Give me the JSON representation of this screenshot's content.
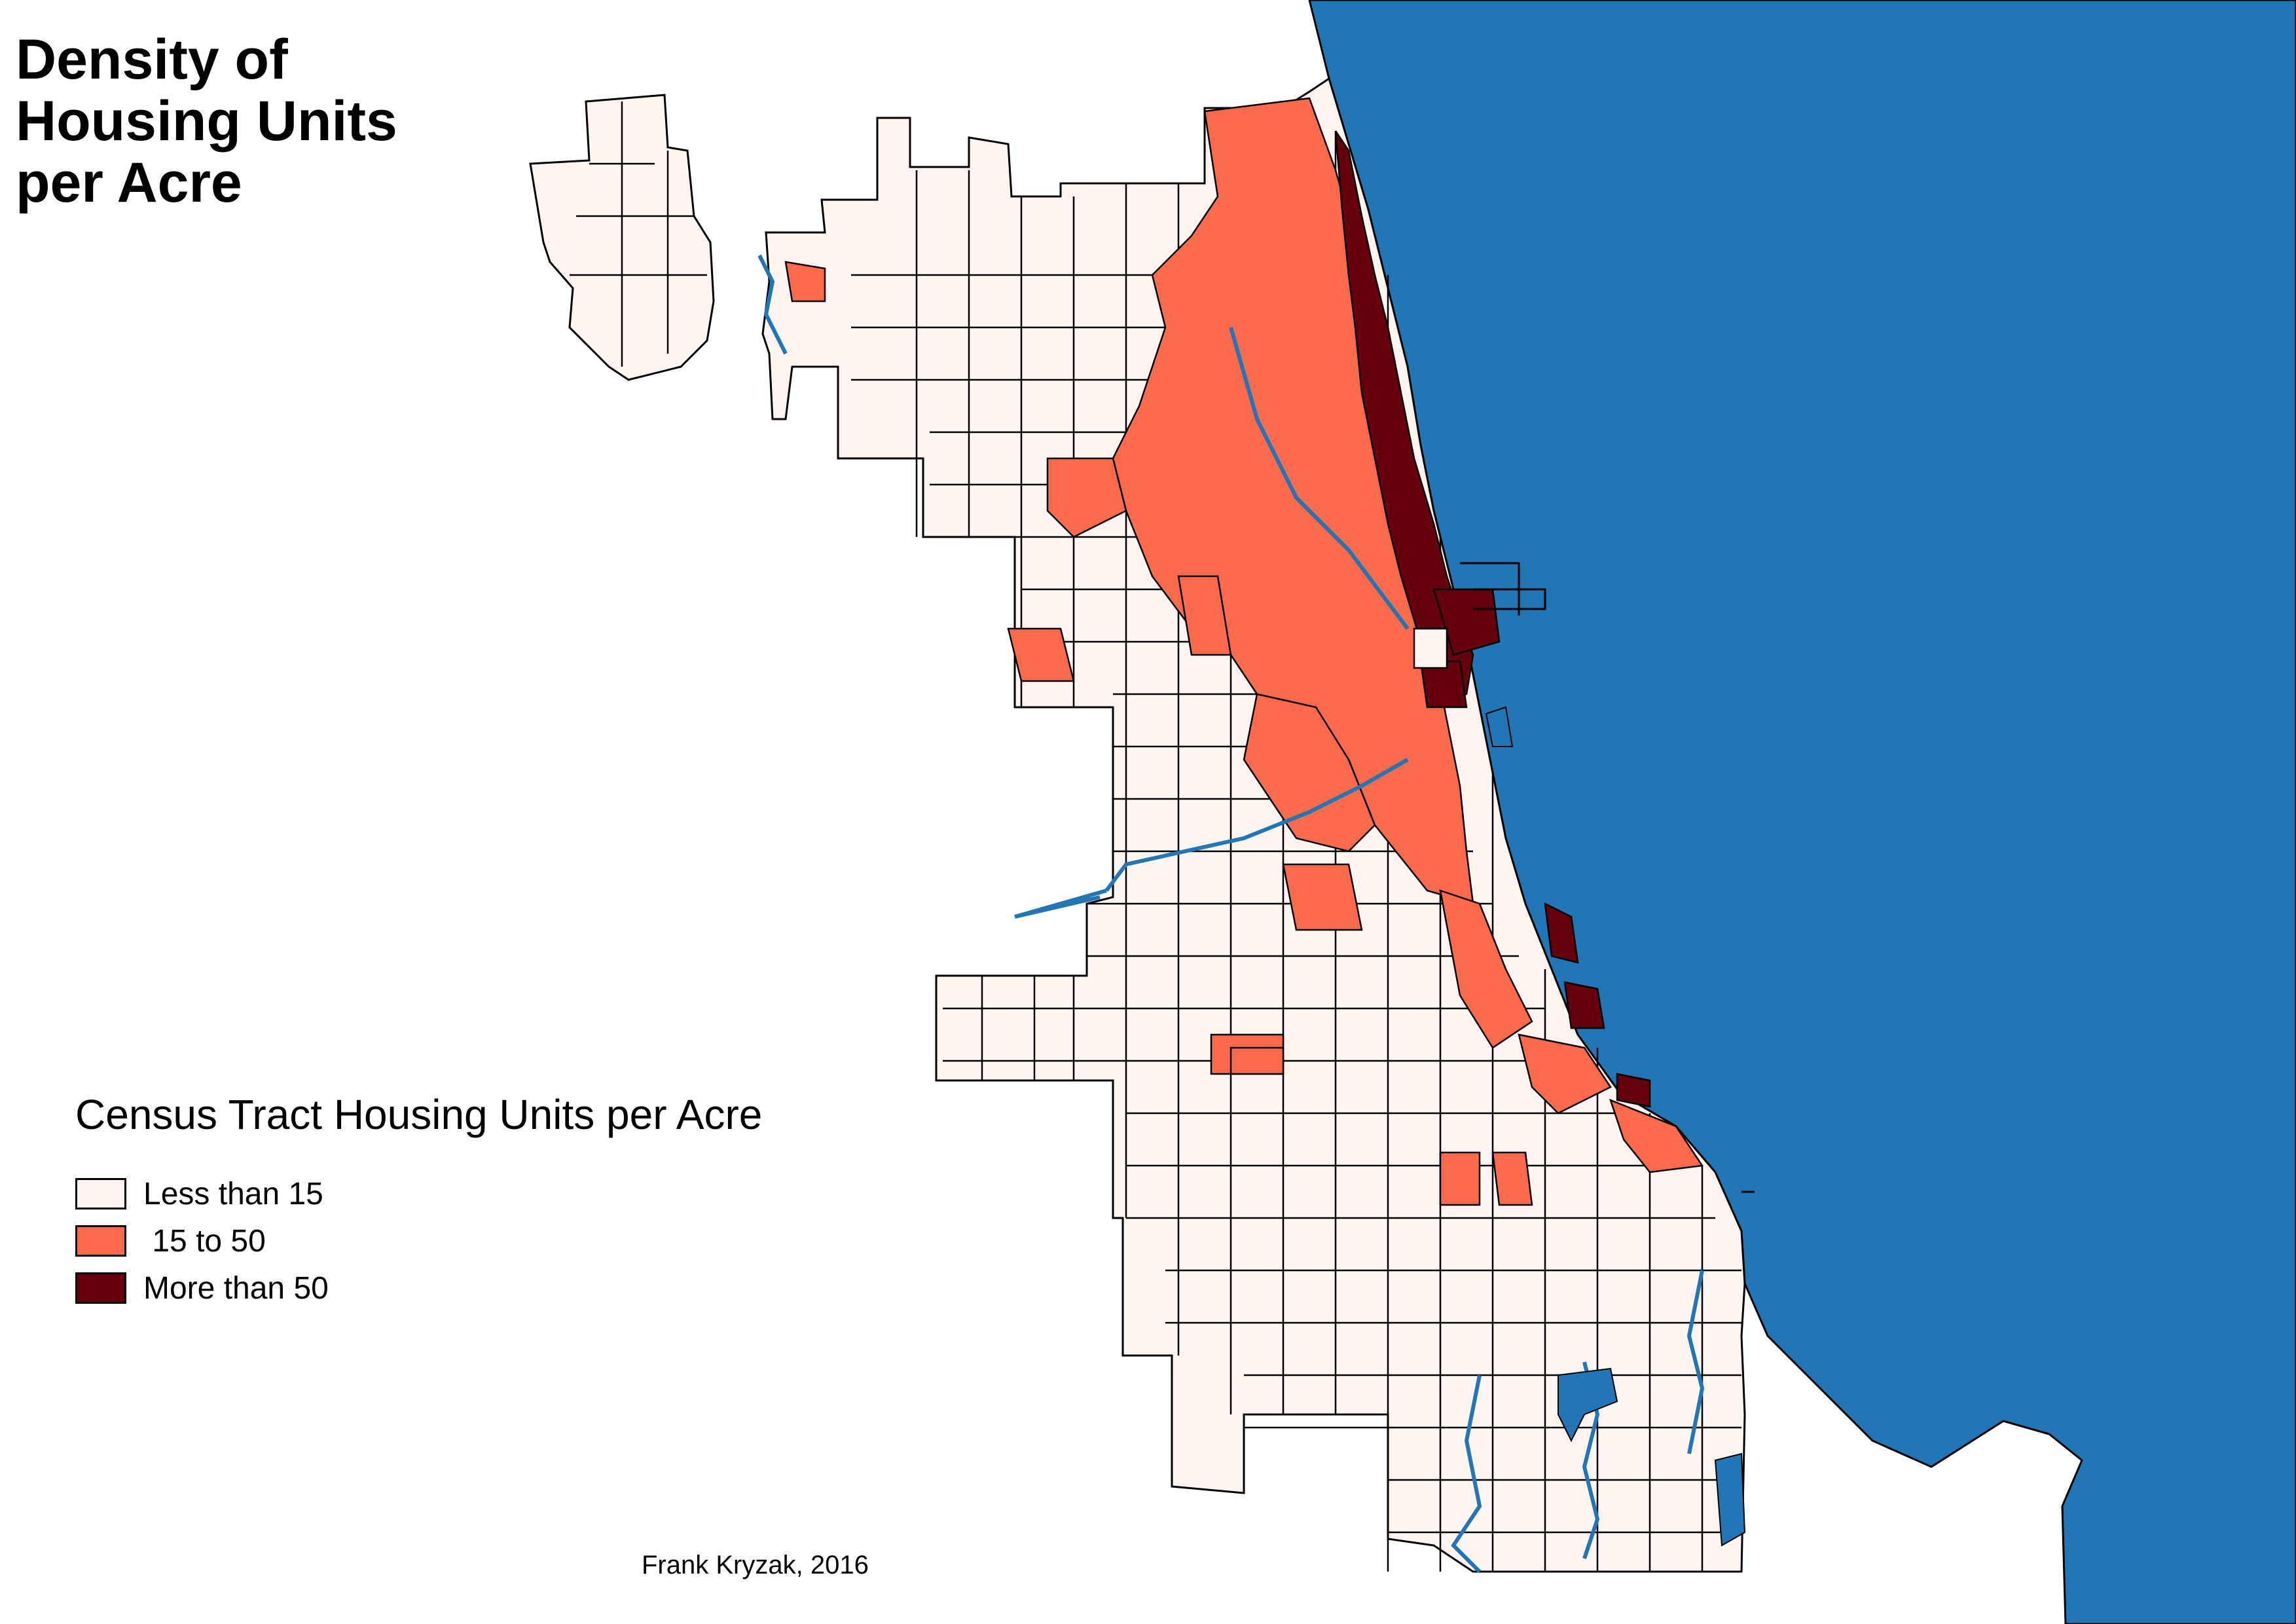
{
  "title": "Density of\nHousing Units\nper Acre",
  "legend": {
    "title": "Census Tract Housing Units per Acre",
    "items": [
      {
        "label": "Less than 15",
        "color": "#fff5f0"
      },
      {
        "label": " 15 to 50",
        "color": "#fb6a4a"
      },
      {
        "label": "More than 50",
        "color": "#67000d"
      }
    ]
  },
  "credit": "Frank Kryzak, 2016",
  "colors": {
    "water": "#2176b5",
    "boundary": "#000000",
    "low": "#fff5f0",
    "mid": "#fb6a4a",
    "high": "#67000d"
  }
}
